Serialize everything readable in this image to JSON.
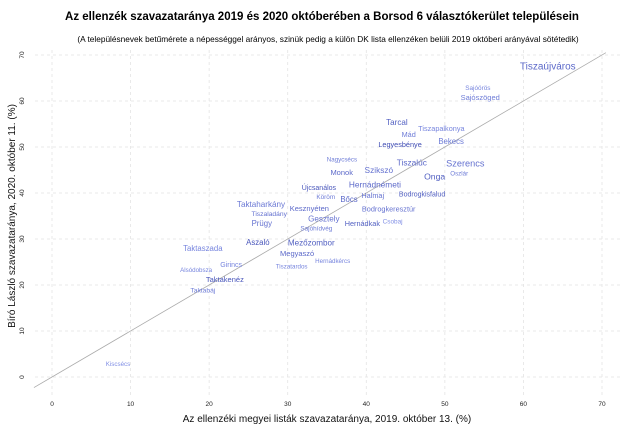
{
  "chart_data": {
    "type": "scatter",
    "title": "Az ellenzék szavazataránya 2019 és 2020 októberében a Borsod 6 választókerület településein",
    "subtitle": "(A településnevek betűmérete a népességgel arányos, szinük pedig a külön DK lista ellenzéken belüli 2019 októberi arányával sötétedik)",
    "xlabel": "Az ellenzéki megyei listák szavazataránya, 2019. október 13. (%)",
    "ylabel": "Bíró László szavazataránya, 2020. október 11. (%)",
    "xlim": [
      -2,
      72
    ],
    "ylim": [
      -2,
      72
    ],
    "xticks": [
      0,
      10,
      20,
      30,
      40,
      50,
      60,
      70
    ],
    "yticks": [
      0,
      10,
      20,
      30,
      40,
      50,
      60,
      70
    ],
    "grid": true,
    "reference_line": "y = x",
    "color_light": "#8a98ec",
    "color_dark": "#2d3aa6",
    "points": [
      {
        "name": "Tiszaújváros",
        "x": 63.1,
        "y": 67.4,
        "size": 1.0,
        "dk": 0.5
      },
      {
        "name": "Sajóörös",
        "x": 54.2,
        "y": 61.1,
        "size": 0.35,
        "dk": 0.2
      },
      {
        "name": "Sajószöged",
        "x": 54.5,
        "y": 60.7,
        "size": 0.55,
        "dk": 0.3
      },
      {
        "name": "Tarcal",
        "x": 43.9,
        "y": 55.2,
        "size": 0.65,
        "dk": 0.6
      },
      {
        "name": "Mád",
        "x": 45.4,
        "y": 53.7,
        "size": 0.5,
        "dk": 0.3
      },
      {
        "name": "Tiszapalkonya",
        "x": 46.5,
        "y": 52.8,
        "size": 0.5,
        "dk": 0.2
      },
      {
        "name": "Legyesbénye",
        "x": 44.3,
        "y": 50.4,
        "size": 0.5,
        "dk": 0.8
      },
      {
        "name": "Bekecs",
        "x": 50.8,
        "y": 51.1,
        "size": 0.6,
        "dk": 0.3
      },
      {
        "name": "Szerencs",
        "x": 52.6,
        "y": 46.3,
        "size": 0.85,
        "dk": 0.4
      },
      {
        "name": "Onga",
        "x": 48.7,
        "y": 44.6,
        "size": 0.75,
        "dk": 0.6
      },
      {
        "name": "Oszlár",
        "x": 50.3,
        "y": 45.0,
        "size": 0.3,
        "dk": 0.3
      },
      {
        "name": "Szikszó",
        "x": 41.6,
        "y": 44.8,
        "size": 0.7,
        "dk": 0.4
      },
      {
        "name": "Hernádnémeti",
        "x": 41.1,
        "y": 44.1,
        "size": 0.7,
        "dk": 0.5
      },
      {
        "name": "Tiszalúc",
        "x": 45.8,
        "y": 44.1,
        "size": 0.7,
        "dk": 0.5
      },
      {
        "name": "Monok",
        "x": 38.4,
        "y": 43.3,
        "size": 0.55,
        "dk": 0.5
      },
      {
        "name": "Halmaj",
        "x": 39.3,
        "y": 41.5,
        "size": 0.5,
        "dk": 0.4
      },
      {
        "name": "Nagycsécs",
        "x": 36.9,
        "y": 41.3,
        "size": 0.3,
        "dk": 0.3
      },
      {
        "name": "Köröm",
        "x": 37.9,
        "y": 40.7,
        "size": 0.35,
        "dk": 0.3
      },
      {
        "name": "Újcsanálos",
        "x": 35.5,
        "y": 40.0,
        "size": 0.45,
        "dk": 0.7
      },
      {
        "name": "Bodrogkeresztúr",
        "x": 39.8,
        "y": 39.6,
        "size": 0.5,
        "dk": 0.4
      },
      {
        "name": "Bodrogkisfalud",
        "x": 47.1,
        "y": 39.6,
        "size": 0.45,
        "dk": 0.6
      },
      {
        "name": "Bőcs",
        "x": 37.8,
        "y": 38.5,
        "size": 0.6,
        "dk": 0.5
      },
      {
        "name": "Hernádkak",
        "x": 39.5,
        "y": 37.6,
        "size": 0.5,
        "dk": 0.6
      },
      {
        "name": "Sajóhídvég",
        "x": 36.7,
        "y": 37.2,
        "size": 0.35,
        "dk": 0.3
      },
      {
        "name": "Csobaj",
        "x": 40.3,
        "y": 34.6,
        "size": 0.35,
        "dk": 0.1
      },
      {
        "name": "Taktaharkány",
        "x": 26.6,
        "y": 37.4,
        "size": 0.65,
        "dk": 0.35
      },
      {
        "name": "Tiszaladány",
        "x": 30.7,
        "y": 34.6,
        "size": 0.4,
        "dk": 0.4
      },
      {
        "name": "Gesztely",
        "x": 34.6,
        "y": 34.3,
        "size": 0.65,
        "dk": 0.4
      },
      {
        "name": "Prügy",
        "x": 26.7,
        "y": 33.3,
        "size": 0.6,
        "dk": 0.4
      },
      {
        "name": "Kesznyéten",
        "x": 29.7,
        "y": 33.3,
        "size": 0.55,
        "dk": 0.5
      },
      {
        "name": "Megyaszó",
        "x": 31.2,
        "y": 30.0,
        "size": 0.55,
        "dk": 0.5
      },
      {
        "name": "Aszaló",
        "x": 26.2,
        "y": 29.1,
        "size": 0.6,
        "dk": 0.7
      },
      {
        "name": "Mezőzombor",
        "x": 33.0,
        "y": 29.1,
        "size": 0.65,
        "dk": 0.6
      },
      {
        "name": "Taktaszada",
        "x": 19.2,
        "y": 27.8,
        "size": 0.6,
        "dk": 0.2
      },
      {
        "name": "Girincs",
        "x": 22.8,
        "y": 24.3,
        "size": 0.45,
        "dk": 0.2
      },
      {
        "name": "Tiszatardos",
        "x": 30.5,
        "y": 23.9,
        "size": 0.3,
        "dk": 0.2
      },
      {
        "name": "Hernádkércs",
        "x": 34.2,
        "y": 24.3,
        "size": 0.3,
        "dk": 0.2
      },
      {
        "name": "Alsódobsza",
        "x": 21.4,
        "y": 22.4,
        "size": 0.3,
        "dk": 0.2
      },
      {
        "name": "Taktakenéz",
        "x": 22.0,
        "y": 21.1,
        "size": 0.55,
        "dk": 0.7
      },
      {
        "name": "Taktabáj",
        "x": 19.2,
        "y": 19.6,
        "size": 0.4,
        "dk": 0.3
      },
      {
        "name": "Kiscsécs",
        "x": 8.4,
        "y": 2.8,
        "size": 0.3,
        "dk": 0.1
      }
    ]
  }
}
